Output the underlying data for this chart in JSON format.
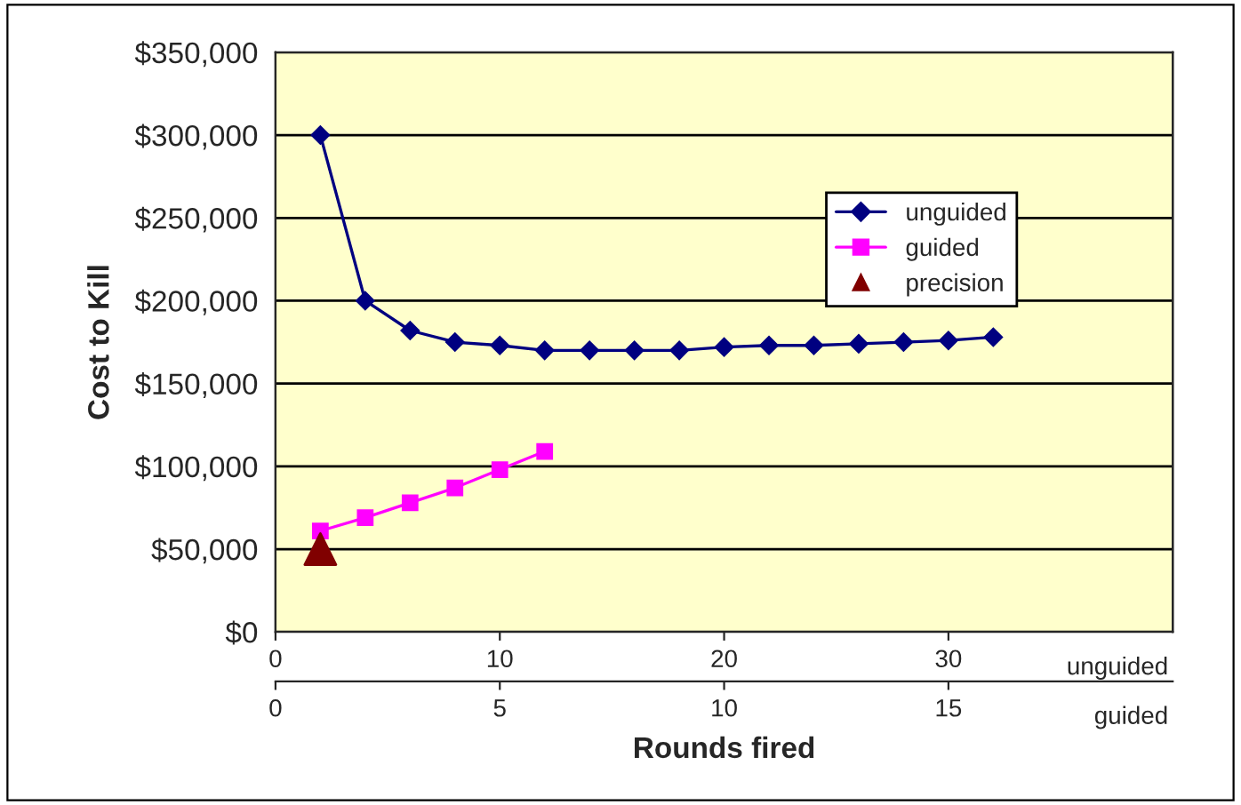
{
  "chart_data": {
    "type": "line",
    "xlabel": "Rounds fired",
    "ylabel": "Cost to Kill",
    "ylim": [
      0,
      350000
    ],
    "yticks": [
      {
        "value": 0,
        "label": "$0"
      },
      {
        "value": 50000,
        "label": "$50,000"
      },
      {
        "value": 100000,
        "label": "$100,000"
      },
      {
        "value": 150000,
        "label": "$150,000"
      },
      {
        "value": 200000,
        "label": "$200,000"
      },
      {
        "value": 250000,
        "label": "$250,000"
      },
      {
        "value": 300000,
        "label": "$300,000"
      },
      {
        "value": 350000,
        "label": "$350,000"
      }
    ],
    "xlim": [
      0,
      40
    ],
    "xticks": [
      0,
      10,
      20,
      30
    ],
    "x2lim": [
      0,
      20
    ],
    "x2ticks": [
      0,
      5,
      10,
      15
    ],
    "grid": "y",
    "legend": "right",
    "annotations": [
      "unguided",
      "guided"
    ],
    "series": [
      {
        "name": "unguided",
        "marker": "diamond",
        "color": "#000080",
        "x": [
          2,
          4,
          6,
          8,
          10,
          12,
          14,
          16,
          18,
          20,
          22,
          24,
          26,
          28,
          30,
          32
        ],
        "values": [
          300000,
          200000,
          182000,
          175000,
          173000,
          170000,
          170000,
          170000,
          170000,
          172000,
          173000,
          173000,
          174000,
          175000,
          176000,
          178000
        ]
      },
      {
        "name": "guided",
        "marker": "square",
        "axis": "x2",
        "color": "#ff00ff",
        "x": [
          1,
          2,
          3,
          4,
          5,
          6
        ],
        "values": [
          61000,
          69000,
          78000,
          87000,
          98000,
          109000
        ]
      },
      {
        "name": "precision",
        "type": "scatter",
        "marker": "triangle",
        "axis": "x2",
        "color": "#800000",
        "x": [
          1
        ],
        "values": [
          50000
        ]
      }
    ]
  }
}
